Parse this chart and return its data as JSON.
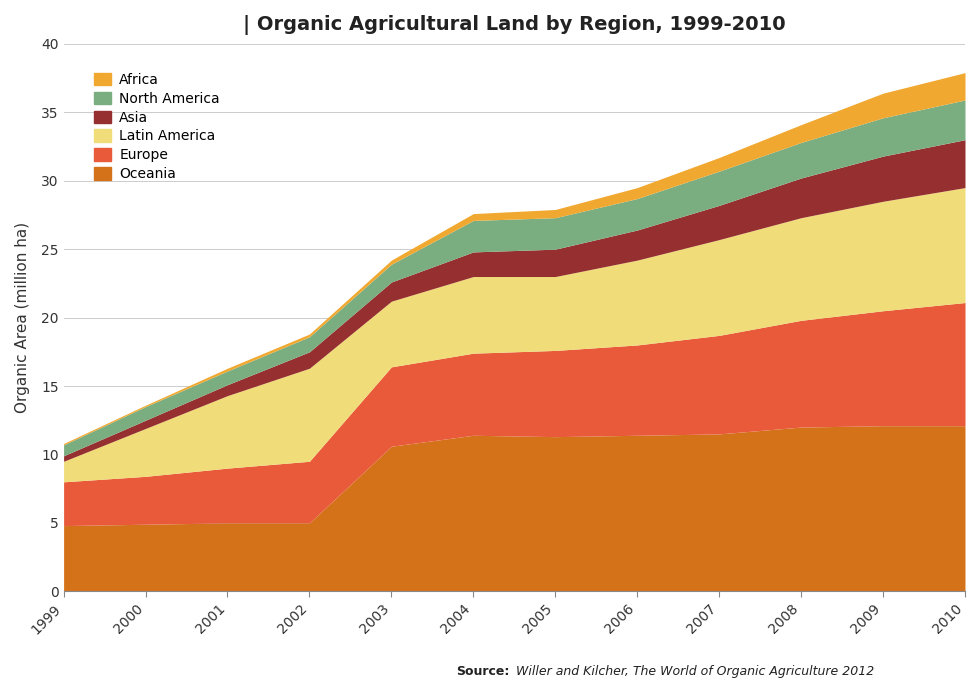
{
  "title": "Organic Agricultural Land by Region, 1999-2010",
  "title_prefix": "| ",
  "ylabel": "Organic Area (million ha)",
  "source_bold": "Source:",
  "source_italic": " Willer and Kilcher, ",
  "source_italic2": "The World of Organic Agriculture 2012",
  "years": [
    1999,
    2000,
    2001,
    2002,
    2003,
    2004,
    2005,
    2006,
    2007,
    2008,
    2009,
    2010
  ],
  "regions": [
    "Oceania",
    "Europe",
    "Latin America",
    "Asia",
    "North America",
    "Africa"
  ],
  "colors": [
    "#D4721A",
    "#E85A3A",
    "#F0DC78",
    "#963030",
    "#7AAE80",
    "#F0A830"
  ],
  "data": {
    "Oceania": [
      4.8,
      4.9,
      5.0,
      5.0,
      10.6,
      11.4,
      11.3,
      11.4,
      11.5,
      12.0,
      12.1,
      12.1
    ],
    "Europe": [
      3.2,
      3.5,
      4.0,
      4.5,
      5.8,
      6.0,
      6.3,
      6.6,
      7.2,
      7.8,
      8.4,
      9.0
    ],
    "Latin America": [
      1.5,
      3.5,
      5.3,
      6.8,
      4.8,
      5.6,
      5.4,
      6.2,
      7.0,
      7.5,
      8.0,
      8.4
    ],
    "Asia": [
      0.4,
      0.6,
      0.8,
      1.2,
      1.4,
      1.8,
      2.0,
      2.2,
      2.5,
      2.9,
      3.3,
      3.5
    ],
    "North America": [
      0.8,
      1.0,
      1.0,
      1.1,
      1.3,
      2.3,
      2.3,
      2.3,
      2.5,
      2.6,
      2.8,
      2.9
    ],
    "Africa": [
      0.1,
      0.1,
      0.2,
      0.2,
      0.3,
      0.5,
      0.6,
      0.8,
      1.0,
      1.3,
      1.8,
      2.0
    ]
  },
  "ylim": [
    0,
    40
  ],
  "yticks": [
    0,
    5,
    10,
    15,
    20,
    25,
    30,
    35,
    40
  ],
  "background_color": "#FFFFFF",
  "plot_bg_color": "#FFFFFF",
  "grid_color": "#CCCCCC",
  "legend_order": [
    "Africa",
    "North America",
    "Asia",
    "Latin America",
    "Europe",
    "Oceania"
  ]
}
